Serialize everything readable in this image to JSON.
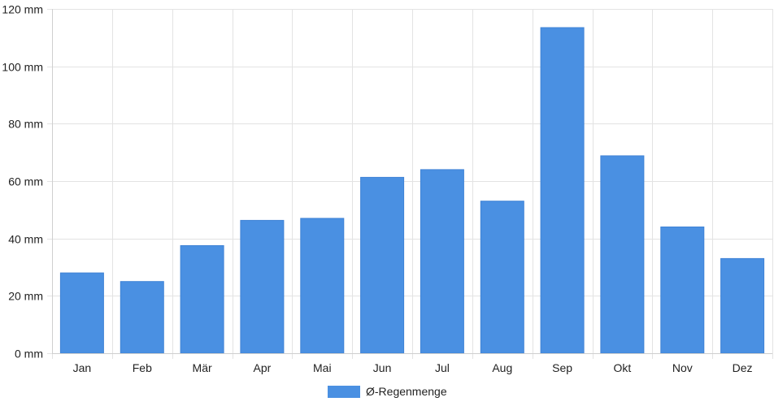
{
  "chart_data": {
    "type": "bar",
    "categories": [
      "Jan",
      "Feb",
      "Mär",
      "Apr",
      "Mai",
      "Jun",
      "Jul",
      "Aug",
      "Sep",
      "Okt",
      "Nov",
      "Dez"
    ],
    "series": [
      {
        "name": "Ø-Regenmenge",
        "color": "#4a90e2",
        "values": [
          28,
          25,
          37.5,
          46.3,
          47,
          61.3,
          64,
          53,
          113.5,
          68.8,
          44,
          33
        ]
      }
    ],
    "y_ticks": [
      "0 mm",
      "20 mm",
      "40 mm",
      "60 mm",
      "80 mm",
      "100 mm",
      "120 mm"
    ],
    "ylim": [
      0,
      120
    ],
    "y_unit": "mm",
    "grid": true,
    "legend_position": "bottom-center"
  }
}
